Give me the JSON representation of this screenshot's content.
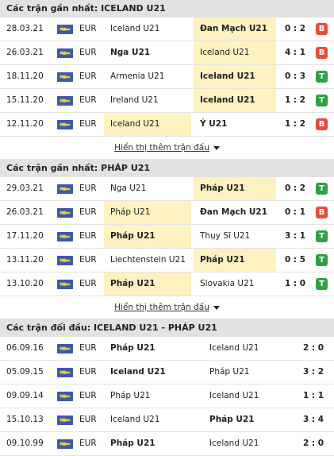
{
  "section1": {
    "title": "Các trận gần nhất: ICELAND U21",
    "matches": [
      {
        "date": "28.03.21",
        "league": "EUR",
        "home": "Iceland U21",
        "away": "Đan Mạch U21",
        "score": "0 : 2",
        "result": "B",
        "home_hl": false,
        "away_hl": true,
        "home_bold": false,
        "away_bold": true
      },
      {
        "date": "26.03.21",
        "league": "EUR",
        "home": "Nga U21",
        "away": "Iceland U21",
        "score": "4 : 1",
        "result": "B",
        "home_hl": false,
        "away_hl": true,
        "home_bold": true,
        "away_bold": false
      },
      {
        "date": "18.11.20",
        "league": "EUR",
        "home": "Armenia U21",
        "away": "Iceland U21",
        "score": "0 : 3",
        "result": "T",
        "home_hl": false,
        "away_hl": true,
        "home_bold": false,
        "away_bold": true
      },
      {
        "date": "15.11.20",
        "league": "EUR",
        "home": "Ireland U21",
        "away": "Iceland U21",
        "score": "1 : 2",
        "result": "T",
        "home_hl": false,
        "away_hl": true,
        "home_bold": false,
        "away_bold": true
      },
      {
        "date": "12.11.20",
        "league": "EUR",
        "home": "Iceland U21",
        "away": "Ý U21",
        "score": "1 : 2",
        "result": "B",
        "home_hl": true,
        "away_hl": false,
        "home_bold": false,
        "away_bold": true
      }
    ],
    "more_label": "Hiển thị thêm trận đấu"
  },
  "section2": {
    "title": "Các trận gần nhất: PHÁP U21",
    "matches": [
      {
        "date": "29.03.21",
        "league": "EUR",
        "home": "Nga U21",
        "away": "Pháp U21",
        "score": "0 : 2",
        "result": "T",
        "home_hl": false,
        "away_hl": true,
        "home_bold": false,
        "away_bold": true
      },
      {
        "date": "26.03.21",
        "league": "EUR",
        "home": "Pháp U21",
        "away": "Đan Mạch U21",
        "score": "0 : 1",
        "result": "B",
        "home_hl": true,
        "away_hl": false,
        "home_bold": false,
        "away_bold": true
      },
      {
        "date": "17.11.20",
        "league": "EUR",
        "home": "Pháp U21",
        "away": "Thụy Sĩ U21",
        "score": "3 : 1",
        "result": "T",
        "home_hl": true,
        "away_hl": false,
        "home_bold": true,
        "away_bold": false
      },
      {
        "date": "13.11.20",
        "league": "EUR",
        "home": "Liechtenstein U21",
        "away": "Pháp U21",
        "score": "0 : 5",
        "result": "T",
        "home_hl": false,
        "away_hl": true,
        "home_bold": false,
        "away_bold": true
      },
      {
        "date": "13.10.20",
        "league": "EUR",
        "home": "Pháp U21",
        "away": "Slovakia U21",
        "score": "1 : 0",
        "result": "T",
        "home_hl": true,
        "away_hl": false,
        "home_bold": true,
        "away_bold": false
      }
    ],
    "more_label": "Hiển thị thêm trận đấu"
  },
  "section3": {
    "title": "Các trận đối đầu: ICELAND U21 - PHÁP U21",
    "matches": [
      {
        "date": "06.09.16",
        "league": "EUR",
        "home": "Pháp U21",
        "away": "Iceland U21",
        "score": "2 : 0",
        "home_bold": true,
        "away_bold": false
      },
      {
        "date": "05.09.15",
        "league": "EUR",
        "home": "Iceland U21",
        "away": "Pháp U21",
        "score": "3 : 2",
        "home_bold": true,
        "away_bold": false
      },
      {
        "date": "09.09.14",
        "league": "EUR",
        "home": "Pháp U21",
        "away": "Iceland U21",
        "score": "1 : 1",
        "home_bold": false,
        "away_bold": false
      },
      {
        "date": "15.10.13",
        "league": "EUR",
        "home": "Iceland U21",
        "away": "Pháp U21",
        "score": "3 : 4",
        "home_bold": false,
        "away_bold": true
      },
      {
        "date": "09.10.99",
        "league": "EUR",
        "home": "Pháp U21",
        "away": "Iceland U21",
        "score": "2 : 0",
        "home_bold": true,
        "away_bold": false
      }
    ]
  },
  "icons": {
    "league_flag": "europe-flag-icon",
    "caret": "caret-down-icon"
  },
  "colors": {
    "highlight": "#fdf2c0",
    "loss": "#e74c3c",
    "win": "#2fa043",
    "header_bg": "#e2e2e2"
  }
}
